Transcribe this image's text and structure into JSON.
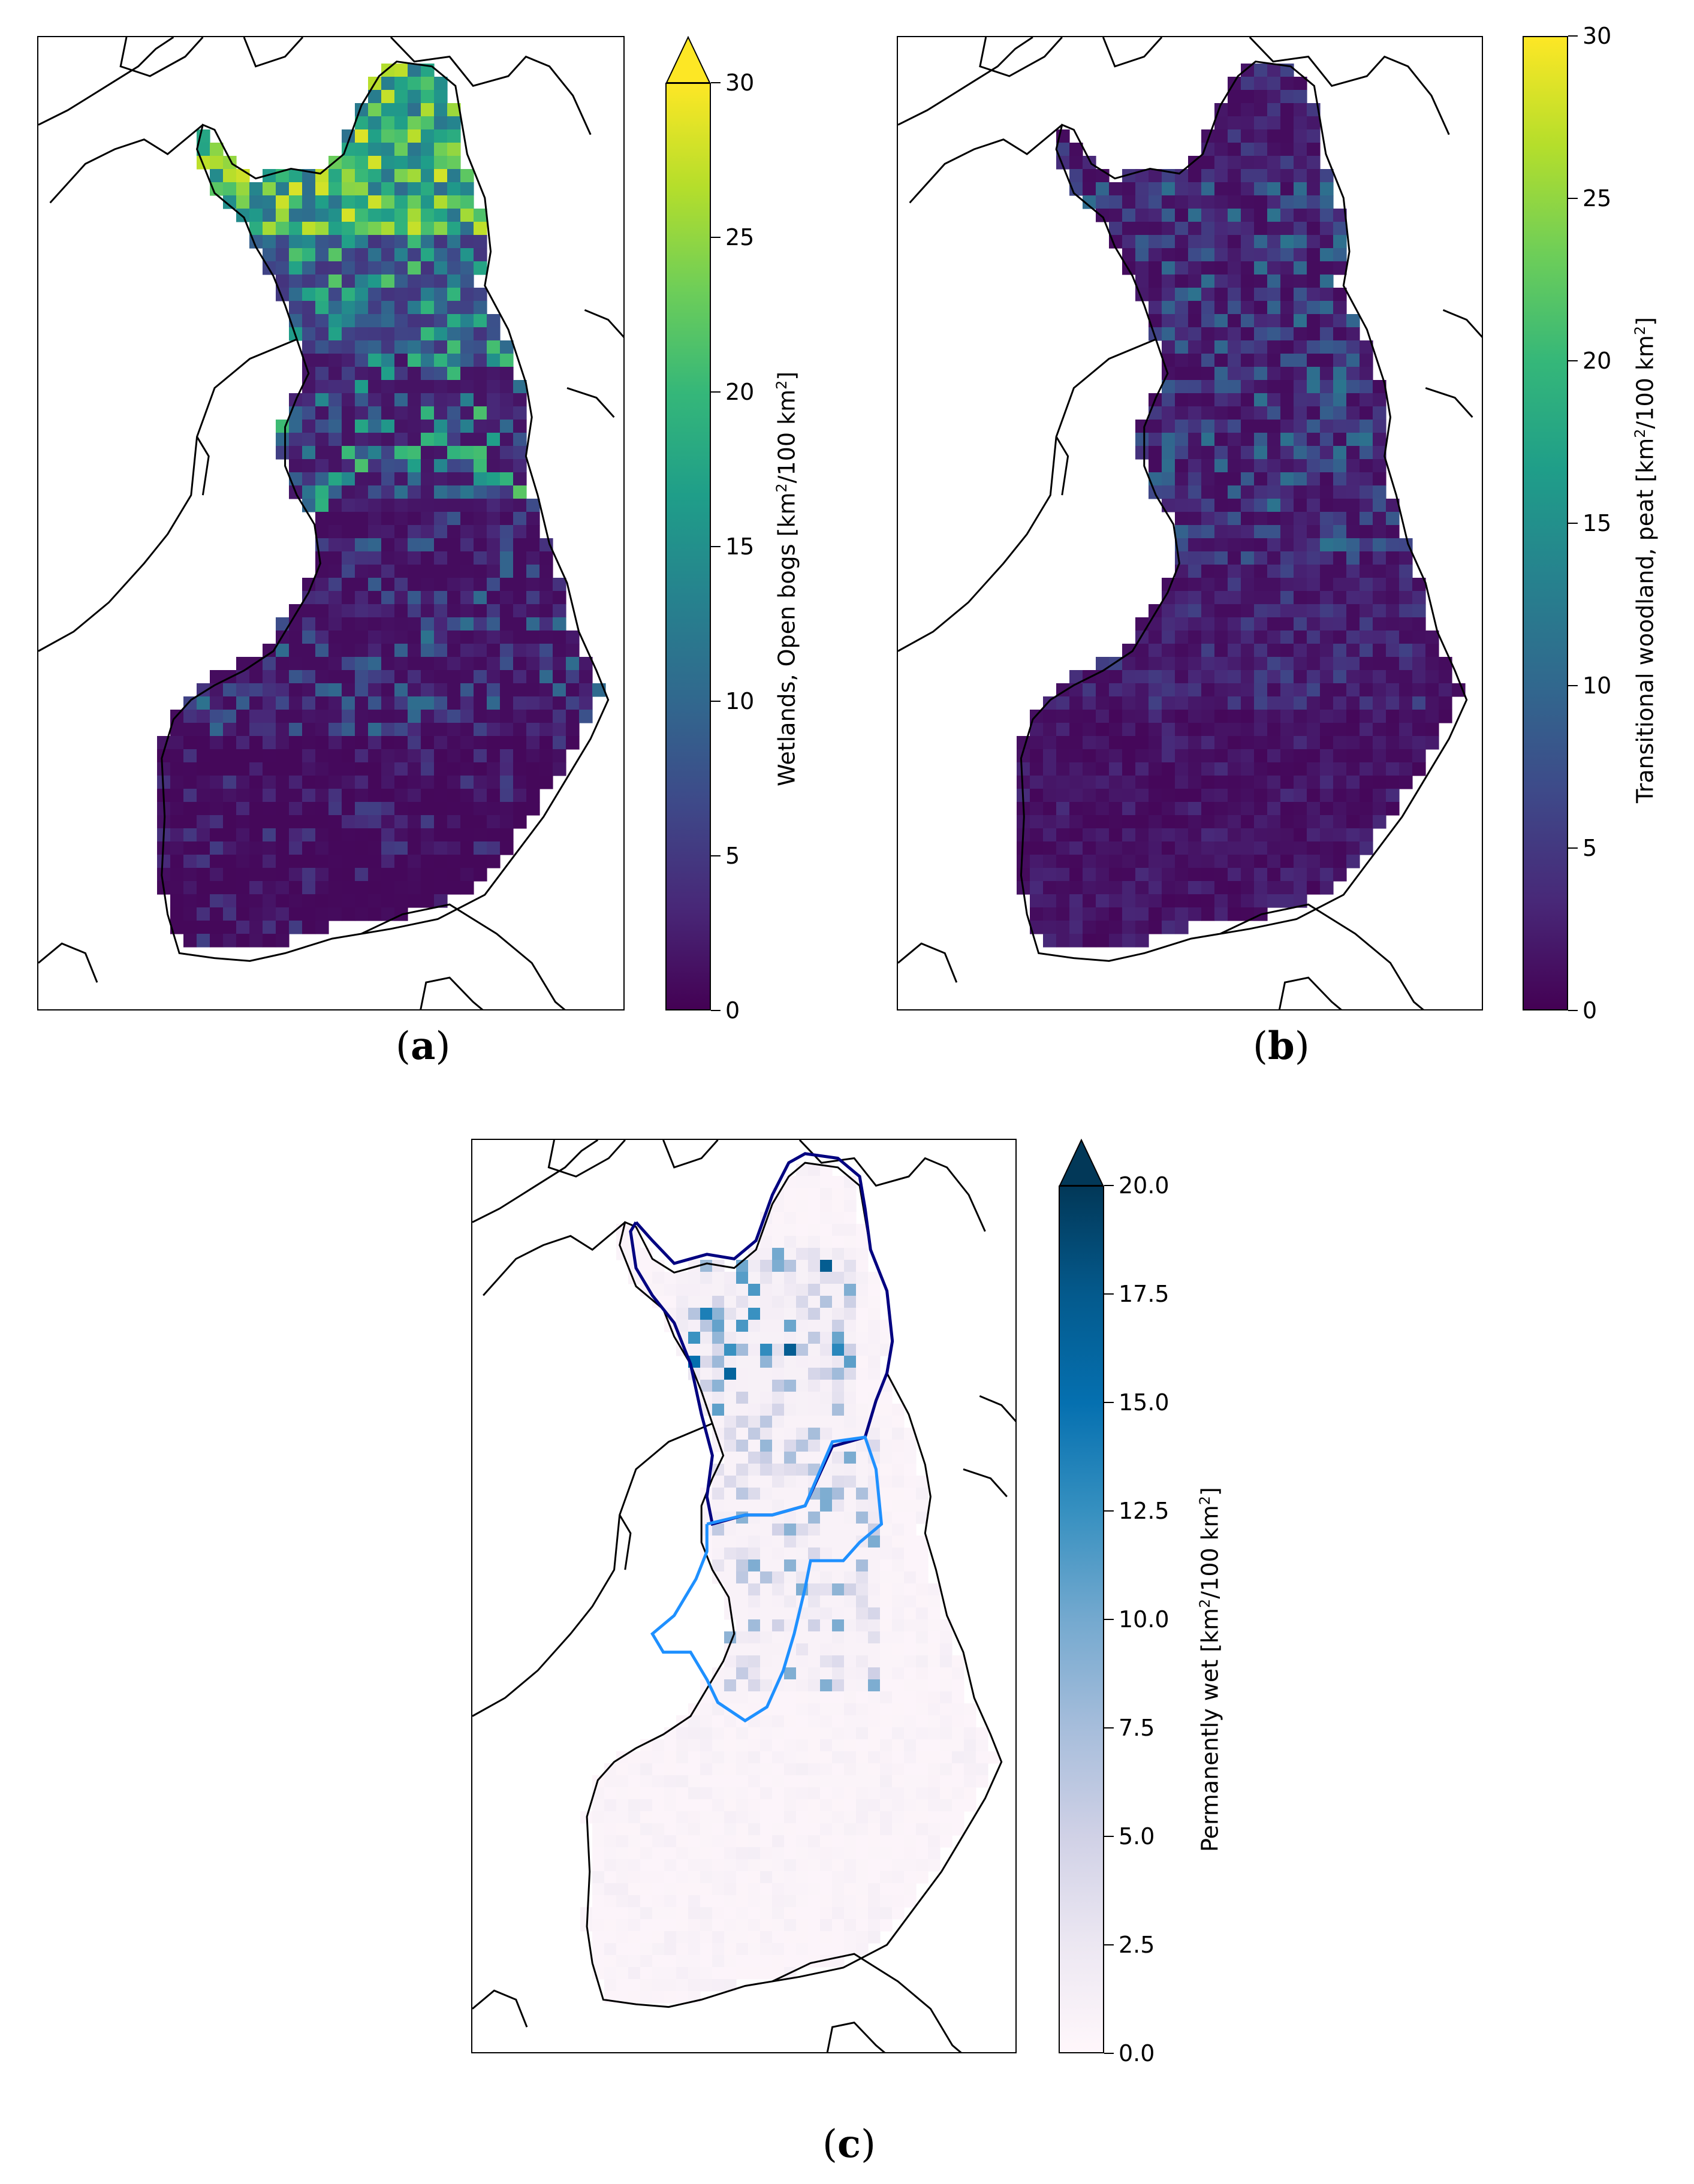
{
  "panels": [
    {
      "letter": "a",
      "colorbar": {
        "label_main": "Wetlands, Open bogs [km",
        "label_sup1": "2",
        "label_mid": "/100 km",
        "label_sup2": "2",
        "label_end": "]",
        "ticks": [
          "0",
          "5",
          "10",
          "15",
          "20",
          "25",
          "30"
        ],
        "min": 0,
        "max": 30,
        "extend": "max",
        "colormap": "viridis",
        "colors": [
          "#440154",
          "#482878",
          "#3e4989",
          "#31688e",
          "#26828e",
          "#1f9e89",
          "#35b779",
          "#6ece58",
          "#b5de2b",
          "#fde725"
        ]
      }
    },
    {
      "letter": "b",
      "colorbar": {
        "label_main": "Transitional woodland, peat [km",
        "label_sup1": "2",
        "label_mid": "/100 km",
        "label_sup2": "2",
        "label_end": "]",
        "ticks": [
          "0",
          "5",
          "10",
          "15",
          "20",
          "25",
          "30"
        ],
        "min": 0,
        "max": 30,
        "extend": "none",
        "colormap": "viridis",
        "colors": [
          "#440154",
          "#482878",
          "#3e4989",
          "#31688e",
          "#26828e",
          "#1f9e89",
          "#35b779",
          "#6ece58",
          "#b5de2b",
          "#fde725"
        ]
      }
    },
    {
      "letter": "c",
      "colorbar": {
        "label_main": "Permanently wet [km",
        "label_sup1": "2",
        "label_mid": "/100 km",
        "label_sup2": "2",
        "label_end": "]",
        "ticks": [
          "0.0",
          "2.5",
          "5.0",
          "7.5",
          "10.0",
          "12.5",
          "15.0",
          "17.5",
          "20.0"
        ],
        "min": 0,
        "max": 20,
        "extend": "max",
        "colormap": "PuBu",
        "colors": [
          "#fff7fb",
          "#ece7f2",
          "#d0d1e6",
          "#a6bddb",
          "#74a9cf",
          "#3690c0",
          "#0570b0",
          "#045a8d",
          "#023858"
        ]
      },
      "region_outline_colors": [
        "#000080",
        "#1e90ff"
      ]
    }
  ],
  "colors": {
    "outline": "#000000",
    "finland_a_bg": "#440154",
    "finland_c_bg": "#fdf2f8"
  }
}
